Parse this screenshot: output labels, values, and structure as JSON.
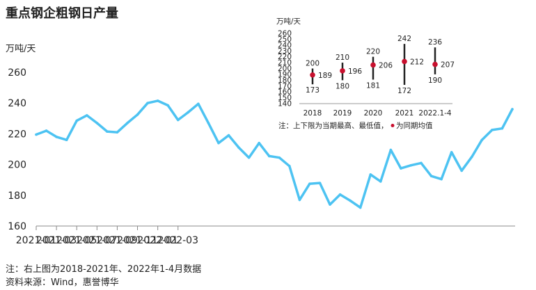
{
  "title": "重点钢企粗钢日产量",
  "footnotes": [
    "注：右上图为2018-2021年、2022年1-4月数据",
    "资料来源：Wind，惠誉博华"
  ],
  "chart_data": [
    {
      "type": "line",
      "ylabel": "万吨/天",
      "ylim": [
        160,
        260
      ],
      "yticks": [
        160,
        180,
        200,
        220,
        240,
        260
      ],
      "xticks": [
        "2021-01",
        "2021-03",
        "2021-05",
        "2021-07",
        "2021-09",
        "2021-11",
        "2022-01",
        "2022-03"
      ],
      "grid": false,
      "color": "#4dc3f2",
      "series": [
        {
          "values": [
            219.5,
            222,
            218,
            216,
            228.5,
            232,
            227,
            221.5,
            221,
            227,
            232.5,
            240,
            241.5,
            238.5,
            229,
            234,
            239.5,
            227,
            214,
            219,
            211,
            204.5,
            214,
            205.5,
            204.5,
            199,
            177,
            187.5,
            188,
            174,
            180.5,
            176.5,
            172,
            193.5,
            189,
            209.5,
            197.5,
            199.5,
            201,
            192.5,
            190.5,
            208,
            196,
            205,
            216,
            222.5,
            223.5,
            236
          ]
        }
      ]
    },
    {
      "type": "range",
      "ylabel": "万吨/天",
      "ylim": [
        140,
        260
      ],
      "yticks": [
        140,
        150,
        160,
        170,
        180,
        190,
        200,
        210,
        220,
        230,
        240,
        250,
        260
      ],
      "categories": [
        "2018",
        "2019",
        "2020",
        "2021",
        "2022.1-4"
      ],
      "max": [
        200,
        210,
        220,
        242,
        236
      ],
      "min": [
        173,
        180,
        181,
        172,
        190
      ],
      "mean": [
        189,
        196,
        206,
        212,
        207
      ],
      "note": "注：上下限为当期最高、最低值，",
      "legend_label": "为同期均值",
      "range_color": "#222222",
      "mean_color": "#c8102e"
    }
  ]
}
